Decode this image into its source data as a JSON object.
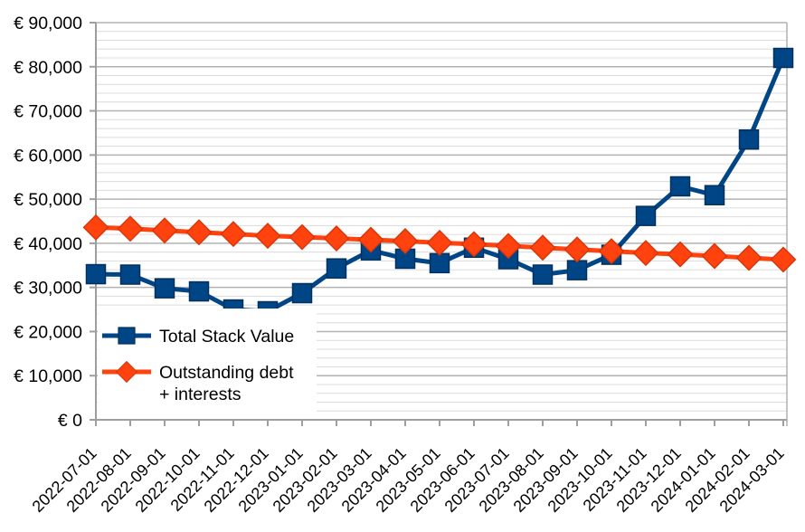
{
  "chart_data": {
    "type": "line",
    "title": "",
    "xlabel": "",
    "ylabel": "",
    "grid": true,
    "legend_position": "inside-bottom-left",
    "ylim": [
      0,
      90000
    ],
    "y_major_step": 10000,
    "y_minor_step": 2000,
    "y_tick_labels": [
      "€ 0",
      "€ 10,000",
      "€ 20,000",
      "€ 30,000",
      "€ 40,000",
      "€ 50,000",
      "€ 60,000",
      "€ 70,000",
      "€ 80,000",
      "€ 90,000"
    ],
    "categories": [
      "2022-07-01",
      "2022-08-01",
      "2022-09-01",
      "2022-10-01",
      "2022-11-01",
      "2022-12-01",
      "2023-01-01",
      "2023-02-01",
      "2023-03-01",
      "2023-04-01",
      "2023-05-01",
      "2023-06-01",
      "2023-07-01",
      "2023-08-01",
      "2023-09-01",
      "2023-10-01",
      "2023-11-01",
      "2023-12-01",
      "2024-01-01",
      "2024-02-01",
      "2024-03-01"
    ],
    "series": [
      {
        "name": "Total Stack Value",
        "legend_lines": [
          "Total Stack Value"
        ],
        "marker": "square",
        "color": "#004586",
        "edge_color": "#03305c",
        "values": [
          33000,
          32900,
          29800,
          29100,
          25000,
          24600,
          28700,
          34300,
          38400,
          36500,
          35500,
          39000,
          36400,
          32900,
          33900,
          37400,
          46200,
          52900,
          50900,
          63500,
          82000
        ]
      },
      {
        "name": "Outstanding debt + interests",
        "legend_lines": [
          "Outstanding debt",
          "+ interests"
        ],
        "marker": "diamond",
        "color": "#FF420E",
        "edge_color": "#d8370b",
        "values": [
          43600,
          43300,
          42900,
          42500,
          42100,
          41700,
          41400,
          41100,
          40800,
          40500,
          40100,
          39800,
          39400,
          39000,
          38600,
          38200,
          37800,
          37500,
          37100,
          36700,
          36300
        ]
      }
    ]
  },
  "colors": {
    "background": "#ffffff",
    "axis": "#9e9e9e",
    "major_grid": "#b2b2b2",
    "minor_grid": "#dcdcdc",
    "legend_background": "#ffffff",
    "text": "#000000"
  }
}
